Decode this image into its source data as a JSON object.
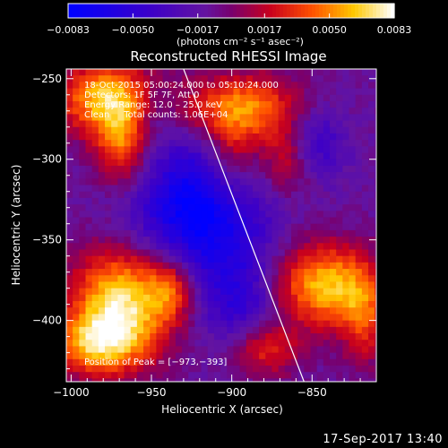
{
  "chart_data": {
    "type": "heatmap",
    "title": "Reconstructed RHESSI Image",
    "xlabel": "Heliocentric X (arcsec)",
    "ylabel": "Heliocentric Y (arcsec)",
    "xlim": [
      -1003,
      -810
    ],
    "ylim": [
      -438,
      -244
    ],
    "xticks": [
      -1000,
      -950,
      -900,
      -850
    ],
    "xtick_labels": [
      "−1000",
      "−950",
      "−900",
      "−850"
    ],
    "yticks": [
      -250,
      -300,
      -350,
      -400
    ],
    "ytick_labels": [
      "−250",
      "−300",
      "−350",
      "−400"
    ],
    "colorbar": {
      "range": [
        -0.0083,
        0.0083
      ],
      "ticks": [
        -0.0083,
        -0.005,
        -0.0017,
        0.0017,
        0.005,
        0.0083
      ],
      "tick_labels": [
        "−0.0083",
        "−0.0050",
        "−0.0017",
        "0.0017",
        "0.0050",
        "0.0083"
      ],
      "units_label": "(photons cm⁻² s⁻¹ asec⁻²)"
    },
    "annotations": [
      "18-Oct-2015 05:00:24.000 to 05:10:24.000",
      "Detectors: 1F 5F 7F, Att 0",
      "Energy Range: 12.0 – 25.0 keV",
      "Clean     Total counts: 1.06E+04"
    ],
    "peak_label": "Position of Peak = [−973,−393]",
    "peak": [
      -973,
      -393
    ],
    "limb_line": {
      "x": [
        -930,
        -855
      ],
      "y": [
        -244,
        -438
      ]
    },
    "blobs": [
      {
        "x": -978,
        "y": -262,
        "sx": 22,
        "sy": 16,
        "amp": 0.0075
      },
      {
        "x": -968,
        "y": -292,
        "sx": 12,
        "sy": 18,
        "amp": 0.0055
      },
      {
        "x": -893,
        "y": -268,
        "sx": 26,
        "sy": 15,
        "amp": 0.0062
      },
      {
        "x": -865,
        "y": -300,
        "sx": 12,
        "sy": 16,
        "amp": 0.0045
      },
      {
        "x": -900,
        "y": -300,
        "sx": 12,
        "sy": 20,
        "amp": 0.004
      },
      {
        "x": -968,
        "y": -388,
        "sx": 22,
        "sy": 24,
        "amp": 0.0085
      },
      {
        "x": -985,
        "y": -415,
        "sx": 20,
        "sy": 14,
        "amp": 0.006
      },
      {
        "x": -938,
        "y": -380,
        "sx": 10,
        "sy": 14,
        "amp": 0.0045
      },
      {
        "x": -842,
        "y": -378,
        "sx": 22,
        "sy": 18,
        "amp": 0.0075
      },
      {
        "x": -880,
        "y": -418,
        "sx": 16,
        "sy": 12,
        "amp": 0.0045
      },
      {
        "x": -818,
        "y": -400,
        "sx": 10,
        "sy": 20,
        "amp": 0.004
      },
      {
        "x": -920,
        "y": -332,
        "sx": 28,
        "sy": 30,
        "amp": -0.0075
      },
      {
        "x": -850,
        "y": -290,
        "sx": 14,
        "sy": 16,
        "amp": -0.004
      },
      {
        "x": -895,
        "y": -390,
        "sx": 16,
        "sy": 22,
        "amp": -0.0035
      },
      {
        "x": -950,
        "y": -270,
        "sx": 10,
        "sy": 14,
        "amp": -0.002
      }
    ],
    "base": -0.0012
  },
  "footer": {
    "timestamp": "17-Sep-2017 13:40"
  }
}
